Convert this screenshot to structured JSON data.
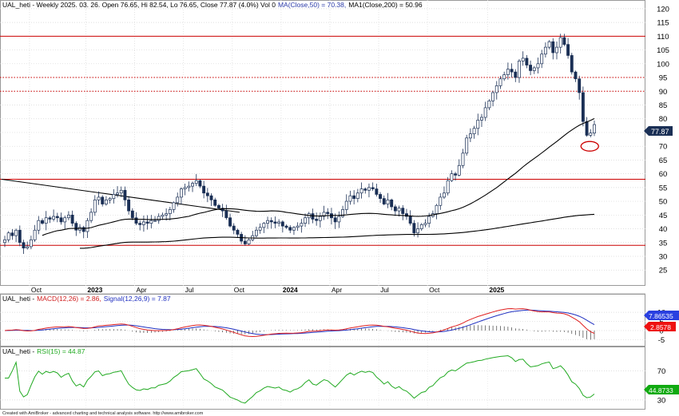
{
  "header": {
    "main": "UAL_heti - Weekly 2025. 03. 26. Open 76.65, Hi 82.54, Lo 76.65, Close 77.87 (4.0%) Vol 0",
    "ma50": "MA(Close,50) = 70.38,",
    "ma200": "MA1(Close,200) = 50.96",
    "macd_prefix": "UAL_heti -",
    "macd": "MACD(12,26) = 2.86,",
    "signal": "Signal(12,26,9) = 7.87",
    "rsi_prefix": "UAL_heti -",
    "rsi": "RSI(15) = 44.87"
  },
  "footer": "Created with AmiBroker - advanced charting and technical analysis software. http://www.amibroker.com",
  "colors": {
    "up": "#ffffff",
    "down": "#1a2f55",
    "ma50": "#000000",
    "ma200": "#000000",
    "hline": "#cc0000",
    "macd": "#e02020",
    "signal": "#2030c0",
    "rsi": "#22aa22",
    "price_badge": "#1a2f55",
    "macd_badge_signal": "#2a40e0",
    "macd_badge_macd": "#ee1111",
    "rsi_badge": "#11aa11"
  },
  "price_badge": "77.87",
  "macd_badges": {
    "signal": "7.86535",
    "macd": "2.8578"
  },
  "rsi_badge": "44.8733",
  "chart_data": [
    {
      "type": "candlestick",
      "title": "UAL_heti - Weekly",
      "ylim": [
        21,
        122
      ],
      "y_ticks": [
        25,
        30,
        35,
        40,
        45,
        50,
        55,
        60,
        65,
        70,
        75,
        80,
        85,
        90,
        95,
        100,
        105,
        110,
        115,
        120
      ],
      "x_labels": [
        "Oct",
        "2023",
        "Apr",
        "Jul",
        "Oct",
        "2024",
        "Apr",
        "Jul",
        "Oct",
        "2025"
      ],
      "bold_x_labels": [
        "2023",
        "2024",
        "2025"
      ],
      "hlines": [
        {
          "value": 110,
          "style": "solid"
        },
        {
          "value": 95,
          "style": "dotted"
        },
        {
          "value": 90,
          "style": "dotted"
        },
        {
          "value": 58,
          "style": "solid"
        },
        {
          "value": 34,
          "style": "solid"
        }
      ],
      "channel_line": {
        "from": 58,
        "to": 46,
        "style": "solid"
      },
      "highlight_ellipse": {
        "value": 70,
        "note": "red ellipse at MA(50) touch"
      },
      "closes": [
        36.0,
        38.5,
        37.5,
        39.5,
        35.0,
        33.0,
        33.5,
        36.0,
        39.5,
        43.0,
        42.0,
        44.0,
        43.5,
        44.5,
        44.0,
        42.5,
        44.0,
        45.0,
        42.0,
        39.5,
        40.5,
        39.0,
        43.0,
        46.0,
        50.5,
        51.5,
        49.0,
        50.5,
        51.0,
        52.5,
        53.0,
        54.0,
        50.5,
        46.5,
        44.0,
        42.0,
        41.5,
        42.5,
        42.0,
        43.0,
        43.0,
        44.5,
        45.0,
        45.5,
        47.0,
        49.5,
        51.5,
        54.5,
        55.0,
        55.5,
        56.5,
        57.5,
        55.5,
        53.0,
        52.0,
        50.5,
        48.5,
        47.5,
        46.5,
        44.0,
        41.0,
        39.5,
        38.0,
        35.5,
        34.5,
        36.0,
        37.5,
        39.5,
        40.5,
        42.0,
        43.0,
        42.5,
        42.0,
        42.5,
        41.0,
        40.5,
        39.5,
        40.5,
        41.0,
        42.0,
        44.0,
        45.5,
        43.5,
        43.0,
        44.5,
        46.0,
        45.5,
        44.0,
        42.5,
        44.5,
        47.0,
        50.0,
        52.0,
        51.0,
        53.0,
        54.5,
        54.0,
        55.0,
        54.5,
        52.5,
        51.0,
        49.0,
        50.5,
        48.0,
        46.5,
        47.5,
        45.5,
        44.5,
        42.0,
        38.5,
        40.0,
        41.5,
        42.0,
        44.5,
        45.5,
        48.5,
        51.5,
        53.0,
        57.5,
        60.0,
        59.5,
        63.0,
        67.5,
        73.0,
        74.5,
        76.5,
        79.5,
        80.5,
        84.0,
        86.5,
        89.5,
        92.0,
        94.5,
        96.0,
        98.0,
        97.0,
        95.0,
        101.0,
        102.0,
        99.5,
        97.5,
        98.5,
        100.0,
        103.5,
        106.0,
        108.0,
        104.0,
        106.0,
        109.5,
        107.0,
        103.0,
        97.0,
        94.5,
        89.5,
        79.0,
        74.0,
        74.8,
        77.87
      ],
      "series": [
        {
          "name": "MA(Close,50)",
          "value_last": 70.38
        },
        {
          "name": "MA1(Close,200)",
          "value_last": 50.96
        }
      ]
    },
    {
      "type": "line",
      "title": "MACD",
      "y_ticks": [
        -5,
        0,
        5,
        10
      ],
      "series": [
        {
          "name": "MACD(12,26)",
          "last": 2.86
        },
        {
          "name": "Signal(12,26,9)",
          "last": 7.87
        }
      ],
      "histogram": true
    },
    {
      "type": "line",
      "title": "RSI",
      "y_ticks": [
        30,
        70
      ],
      "series": [
        {
          "name": "RSI(15)",
          "last": 44.87
        }
      ]
    }
  ]
}
